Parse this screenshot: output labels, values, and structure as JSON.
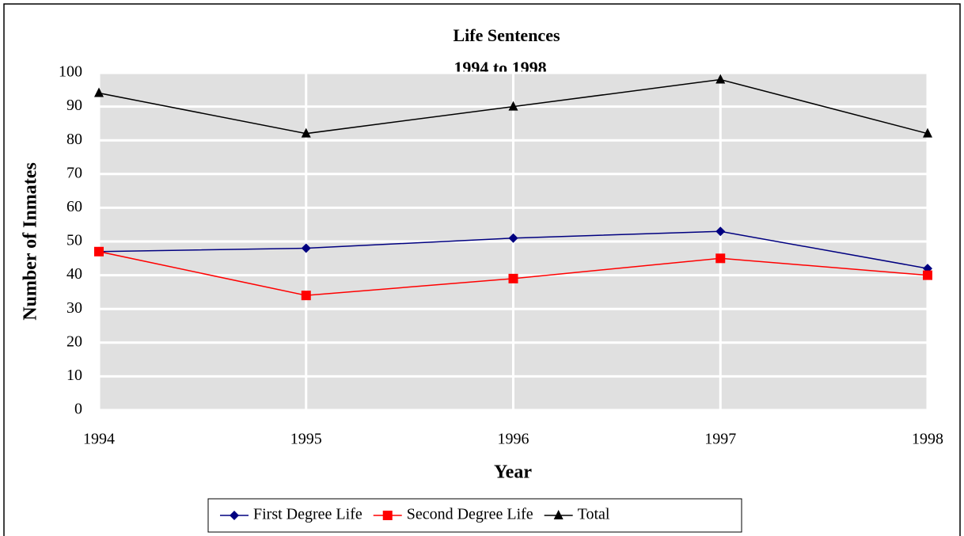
{
  "chart_data": {
    "type": "line",
    "title": "Life Sentences",
    "subtitle": "1994 to 1998",
    "x_label": "Year",
    "y_label": "Number of Inmates",
    "x": [
      1994,
      1995,
      1996,
      1997,
      1998
    ],
    "xlim": [
      1994,
      1998
    ],
    "xticks": [
      1994,
      1995,
      1996,
      1997,
      1998
    ],
    "ylim": [
      0,
      100
    ],
    "yticks": [
      0,
      10,
      20,
      30,
      40,
      50,
      60,
      70,
      80,
      90,
      100
    ],
    "grid": true,
    "legend": "bottom",
    "series": [
      {
        "name": "First Degree Life",
        "color": "#000080",
        "marker": "diamond",
        "values": [
          47,
          48,
          51,
          53,
          42
        ]
      },
      {
        "name": "Second Degree Life",
        "color": "#ff0000",
        "marker": "square",
        "values": [
          47,
          34,
          39,
          45,
          40
        ]
      },
      {
        "name": "Total",
        "color": "#000000",
        "marker": "triangle",
        "values": [
          94,
          82,
          90,
          98,
          82
        ]
      }
    ]
  }
}
